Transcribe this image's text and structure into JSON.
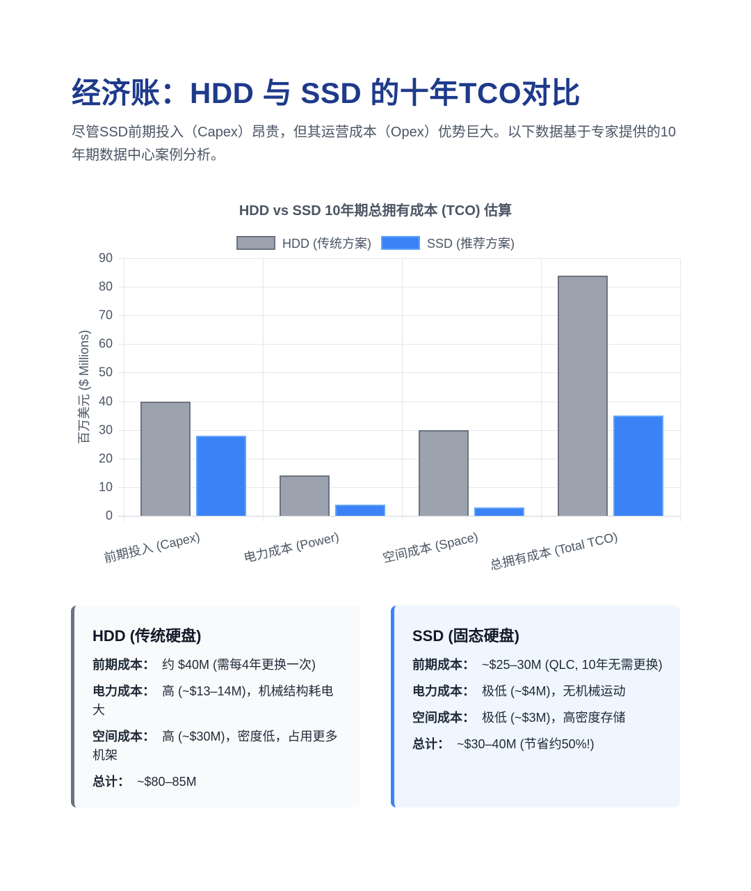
{
  "header": {
    "title": "经济账：HDD 与 SSD 的十年TCO对比",
    "subtitle": "尽管SSD前期投入（Capex）昂贵，但其运营成本（Opex）优势巨大。以下数据基于专家提供的10年期数据中心案例分析。"
  },
  "colors": {
    "hdd": "#9ca3af",
    "ssd": "#3b82f6",
    "title": "#1e3a8a"
  },
  "chart_data": {
    "type": "bar",
    "title": "HDD vs SSD 10年期总拥有成本 (TCO) 估算",
    "xlabel": "",
    "ylabel": "百万美元 ($ Millions)",
    "ylim": [
      0,
      90
    ],
    "yticks": [
      0,
      10,
      20,
      30,
      40,
      50,
      60,
      70,
      80,
      90
    ],
    "grid": true,
    "legend_position": "top",
    "categories": [
      "前期投入 (Capex)",
      "电力成本 (Power)",
      "空间成本 (Space)",
      "总拥有成本 (Total TCO)"
    ],
    "series": [
      {
        "name": "HDD (传统方案)",
        "values": [
          40,
          14,
          30,
          84
        ]
      },
      {
        "name": "SSD (推荐方案)",
        "values": [
          28,
          4,
          3,
          35
        ]
      }
    ]
  },
  "cards": {
    "hdd": {
      "title": "HDD (传统硬盘)",
      "rows": [
        {
          "label": "前期成本：",
          "value": "约 $40M (需每4年更换一次)"
        },
        {
          "label": "电力成本：",
          "value": "高 (~$13–14M)，机械结构耗电大"
        },
        {
          "label": "空间成本：",
          "value": "高 (~$30M)，密度低，占用更多机架"
        },
        {
          "label": "总计：",
          "value": "~$80–85M"
        }
      ]
    },
    "ssd": {
      "title": "SSD (固态硬盘)",
      "rows": [
        {
          "label": "前期成本：",
          "value": "~$25–30M (QLC, 10年无需更换)"
        },
        {
          "label": "电力成本：",
          "value": "极低 (~$4M)，无机械运动"
        },
        {
          "label": "空间成本：",
          "value": "极低 (~$3M)，高密度存储"
        },
        {
          "label": "总计：",
          "value": "~$30–40M (节省约50%!)"
        }
      ]
    }
  }
}
